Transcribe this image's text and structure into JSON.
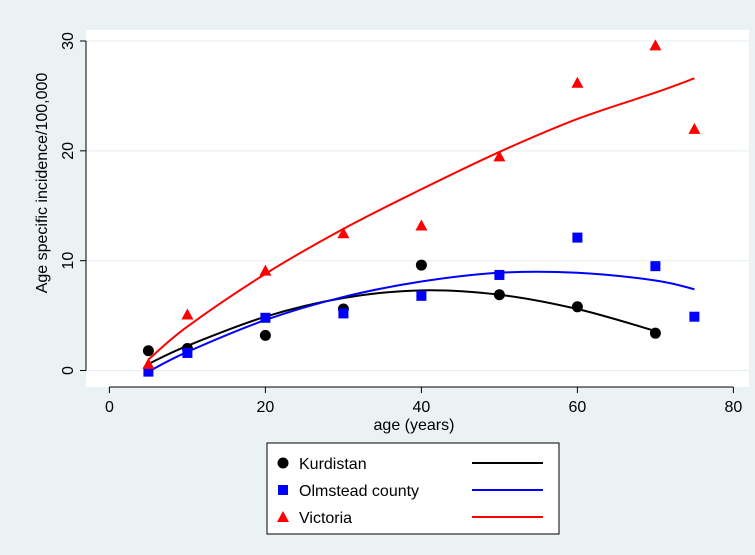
{
  "chart_data": {
    "type": "scatter",
    "title": "",
    "xlabel": "age (years)",
    "ylabel": "Age specific incidence/100,000",
    "xlim": [
      -3,
      82
    ],
    "ylim": [
      -1.5,
      31
    ],
    "xticks": [
      0,
      20,
      40,
      60,
      80
    ],
    "xtick_labels": [
      "0",
      "20",
      "40",
      "60",
      "80"
    ],
    "yticks": [
      0,
      10,
      20,
      30
    ],
    "ytick_labels": [
      "0",
      "10",
      "20",
      "30"
    ],
    "grid": "horizontal",
    "legend_position": "bottom",
    "series": [
      {
        "name": "Kurdistan",
        "marker": "circle",
        "color": "#000000",
        "points": [
          [
            5,
            1.8
          ],
          [
            10,
            2.0
          ],
          [
            20,
            3.2
          ],
          [
            30,
            5.6
          ],
          [
            40,
            9.6
          ],
          [
            50,
            6.9
          ],
          [
            60,
            5.8
          ],
          [
            70,
            3.4
          ]
        ],
        "fit": [
          [
            5,
            0.6
          ],
          [
            10,
            2.25
          ],
          [
            20,
            4.9
          ],
          [
            30,
            6.6
          ],
          [
            40,
            7.3
          ],
          [
            50,
            6.9
          ],
          [
            60,
            5.6
          ],
          [
            70,
            3.6
          ]
        ]
      },
      {
        "name": "Olmstead county",
        "marker": "square",
        "color": "#0000ff",
        "points": [
          [
            5,
            -0.1
          ],
          [
            10,
            1.6
          ],
          [
            20,
            4.8
          ],
          [
            30,
            5.2
          ],
          [
            40,
            6.8
          ],
          [
            50,
            8.7
          ],
          [
            60,
            12.1
          ],
          [
            70,
            9.5
          ],
          [
            75,
            4.9
          ]
        ],
        "fit": [
          [
            5,
            -0.1
          ],
          [
            10,
            1.7
          ],
          [
            20,
            4.6
          ],
          [
            30,
            6.7
          ],
          [
            40,
            8.1
          ],
          [
            50,
            8.9
          ],
          [
            60,
            8.9
          ],
          [
            70,
            8.2
          ],
          [
            75,
            7.4
          ]
        ]
      },
      {
        "name": "Victoria",
        "marker": "triangle",
        "color": "#ff0000",
        "points": [
          [
            5,
            0.6
          ],
          [
            10,
            5.1
          ],
          [
            20,
            9.1
          ],
          [
            30,
            12.5
          ],
          [
            40,
            13.2
          ],
          [
            50,
            19.5
          ],
          [
            60,
            26.2
          ],
          [
            70,
            29.6
          ],
          [
            75,
            22.0
          ]
        ],
        "fit": [
          [
            5,
            1.0
          ],
          [
            10,
            4.0
          ],
          [
            20,
            8.8
          ],
          [
            30,
            12.9
          ],
          [
            40,
            16.5
          ],
          [
            50,
            19.9
          ],
          [
            60,
            22.9
          ],
          [
            70,
            25.3
          ],
          [
            75,
            26.6
          ]
        ]
      }
    ]
  }
}
